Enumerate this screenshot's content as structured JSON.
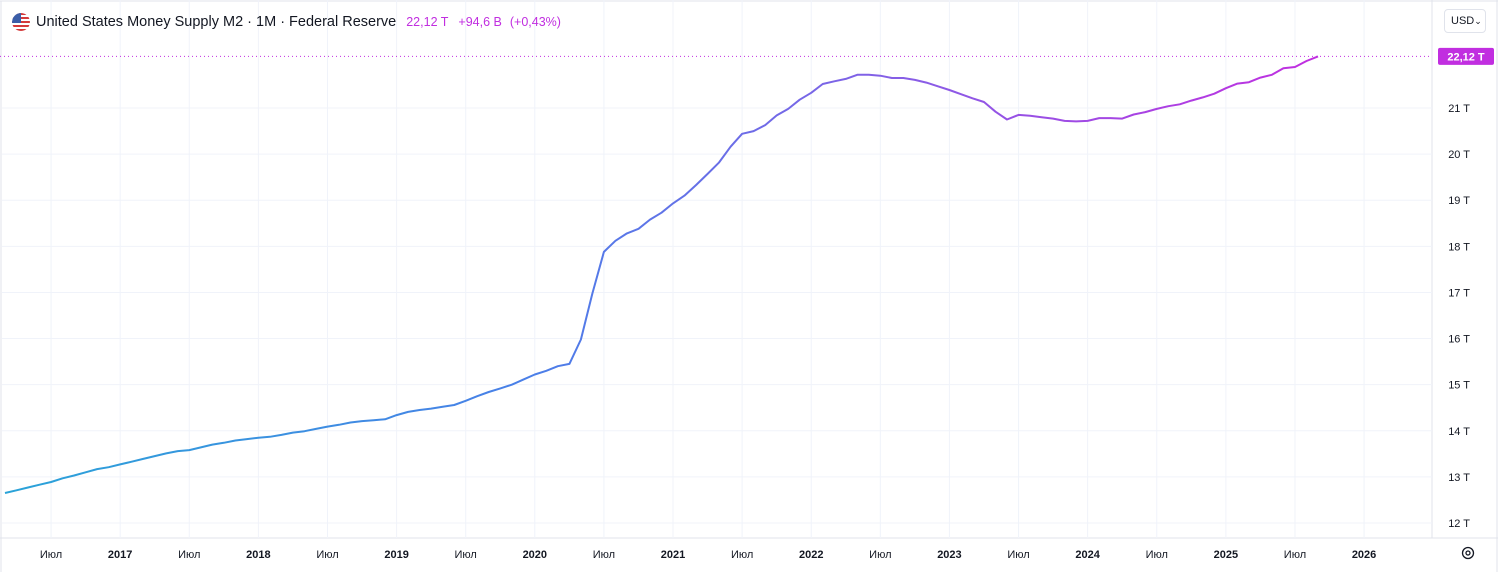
{
  "header": {
    "title": "United States Money Supply M2 · 1M · Federal Reserve",
    "value": "22,12 T",
    "change": "+94,6 B",
    "change_pct": "(+0,43%)",
    "flag_icon": "us-flag-icon"
  },
  "currency_select": {
    "label": "USD",
    "icon": "chevron-down-icon"
  },
  "settings_icon": "gear-icon",
  "last_value_label": "22,12 T",
  "colors": {
    "line_start": "#3a9bdc",
    "line_end": "#c12ee0",
    "last_value_bg": "#c12ee0",
    "grid": "#f0f3fa"
  },
  "chart_data": {
    "type": "line",
    "title": "United States Money Supply M2 · 1M · Federal Reserve",
    "xlabel": "",
    "ylabel": "",
    "ylim": [
      11.8,
      22.95
    ],
    "y_ticks": [
      "12 T",
      "13 T",
      "14 T",
      "15 T",
      "16 T",
      "17 T",
      "18 T",
      "19 T",
      "20 T",
      "21 T"
    ],
    "y_tick_values": [
      12,
      13,
      14,
      15,
      16,
      17,
      18,
      19,
      20,
      21
    ],
    "x_ticks": [
      "Июл",
      "2017",
      "Июл",
      "2018",
      "Июл",
      "2019",
      "Июл",
      "2020",
      "Июл",
      "2021",
      "Июл",
      "2022",
      "Июл",
      "2023",
      "Июл",
      "2024",
      "Июл",
      "2025",
      "Июл",
      "2026"
    ],
    "x_tick_values": [
      "2016-07",
      "2017-01",
      "2017-07",
      "2018-01",
      "2018-07",
      "2019-01",
      "2019-07",
      "2020-01",
      "2020-07",
      "2021-01",
      "2021-07",
      "2022-01",
      "2022-07",
      "2023-01",
      "2023-07",
      "2024-01",
      "2024-07",
      "2025-01",
      "2025-07",
      "2026-01"
    ],
    "x_range": [
      "2016-03",
      "2026-05"
    ],
    "grid": true,
    "series": [
      {
        "unit": "T",
        "points": [
          [
            "2016-03",
            12.65
          ],
          [
            "2016-04",
            12.71
          ],
          [
            "2016-05",
            12.77
          ],
          [
            "2016-06",
            12.83
          ],
          [
            "2016-07",
            12.89
          ],
          [
            "2016-08",
            12.97
          ],
          [
            "2016-09",
            13.03
          ],
          [
            "2016-10",
            13.1
          ],
          [
            "2016-11",
            13.17
          ],
          [
            "2016-12",
            13.21
          ],
          [
            "2017-01",
            13.27
          ],
          [
            "2017-02",
            13.33
          ],
          [
            "2017-03",
            13.39
          ],
          [
            "2017-04",
            13.45
          ],
          [
            "2017-05",
            13.51
          ],
          [
            "2017-06",
            13.56
          ],
          [
            "2017-07",
            13.58
          ],
          [
            "2017-08",
            13.64
          ],
          [
            "2017-09",
            13.7
          ],
          [
            "2017-10",
            13.74
          ],
          [
            "2017-11",
            13.79
          ],
          [
            "2017-12",
            13.82
          ],
          [
            "2018-01",
            13.85
          ],
          [
            "2018-02",
            13.87
          ],
          [
            "2018-03",
            13.91
          ],
          [
            "2018-04",
            13.96
          ],
          [
            "2018-05",
            13.99
          ],
          [
            "2018-06",
            14.04
          ],
          [
            "2018-07",
            14.09
          ],
          [
            "2018-08",
            14.13
          ],
          [
            "2018-09",
            14.18
          ],
          [
            "2018-10",
            14.21
          ],
          [
            "2018-11",
            14.23
          ],
          [
            "2018-12",
            14.25
          ],
          [
            "2019-01",
            14.34
          ],
          [
            "2019-02",
            14.41
          ],
          [
            "2019-03",
            14.45
          ],
          [
            "2019-04",
            14.48
          ],
          [
            "2019-05",
            14.52
          ],
          [
            "2019-06",
            14.56
          ],
          [
            "2019-07",
            14.65
          ],
          [
            "2019-08",
            14.75
          ],
          [
            "2019-09",
            14.84
          ],
          [
            "2019-10",
            14.92
          ],
          [
            "2019-11",
            15.0
          ],
          [
            "2019-12",
            15.11
          ],
          [
            "2020-01",
            15.22
          ],
          [
            "2020-02",
            15.3
          ],
          [
            "2020-03",
            15.4
          ],
          [
            "2020-04",
            15.45
          ],
          [
            "2020-05",
            15.98
          ],
          [
            "2020-06",
            16.98
          ],
          [
            "2020-07",
            17.88
          ],
          [
            "2020-08",
            18.12
          ],
          [
            "2020-09",
            18.28
          ],
          [
            "2020-10",
            18.38
          ],
          [
            "2020-11",
            18.58
          ],
          [
            "2020-12",
            18.73
          ],
          [
            "2021-01",
            18.93
          ],
          [
            "2021-02",
            19.1
          ],
          [
            "2021-03",
            19.33
          ],
          [
            "2021-04",
            19.57
          ],
          [
            "2021-05",
            19.82
          ],
          [
            "2021-06",
            20.16
          ],
          [
            "2021-07",
            20.44
          ],
          [
            "2021-08",
            20.5
          ],
          [
            "2021-09",
            20.63
          ],
          [
            "2021-10",
            20.84
          ],
          [
            "2021-11",
            20.98
          ],
          [
            "2021-12",
            21.18
          ],
          [
            "2022-01",
            21.33
          ],
          [
            "2022-02",
            21.52
          ],
          [
            "2022-03",
            21.58
          ],
          [
            "2022-04",
            21.63
          ],
          [
            "2022-05",
            21.72
          ],
          [
            "2022-06",
            21.72
          ],
          [
            "2022-07",
            21.7
          ],
          [
            "2022-08",
            21.65
          ],
          [
            "2022-09",
            21.65
          ],
          [
            "2022-10",
            21.61
          ],
          [
            "2022-11",
            21.55
          ],
          [
            "2022-12",
            21.47
          ],
          [
            "2023-01",
            21.39
          ],
          [
            "2023-02",
            21.3
          ],
          [
            "2023-03",
            21.21
          ],
          [
            "2023-04",
            21.13
          ],
          [
            "2023-05",
            20.92
          ],
          [
            "2023-06",
            20.75
          ],
          [
            "2023-07",
            20.85
          ],
          [
            "2023-08",
            20.83
          ],
          [
            "2023-09",
            20.8
          ],
          [
            "2023-10",
            20.77
          ],
          [
            "2023-11",
            20.72
          ],
          [
            "2023-12",
            20.71
          ],
          [
            "2024-01",
            20.72
          ],
          [
            "2024-02",
            20.78
          ],
          [
            "2024-03",
            20.78
          ],
          [
            "2024-04",
            20.77
          ],
          [
            "2024-05",
            20.86
          ],
          [
            "2024-06",
            20.91
          ],
          [
            "2024-07",
            20.98
          ],
          [
            "2024-08",
            21.04
          ],
          [
            "2024-09",
            21.08
          ],
          [
            "2024-10",
            21.16
          ],
          [
            "2024-11",
            21.23
          ],
          [
            "2024-12",
            21.31
          ],
          [
            "2025-01",
            21.43
          ],
          [
            "2025-02",
            21.53
          ],
          [
            "2025-03",
            21.56
          ],
          [
            "2025-04",
            21.66
          ],
          [
            "2025-05",
            21.72
          ],
          [
            "2025-06",
            21.86
          ],
          [
            "2025-07",
            21.89
          ],
          [
            "2025-08",
            22.02
          ],
          [
            "2025-09",
            22.12
          ]
        ]
      }
    ]
  }
}
